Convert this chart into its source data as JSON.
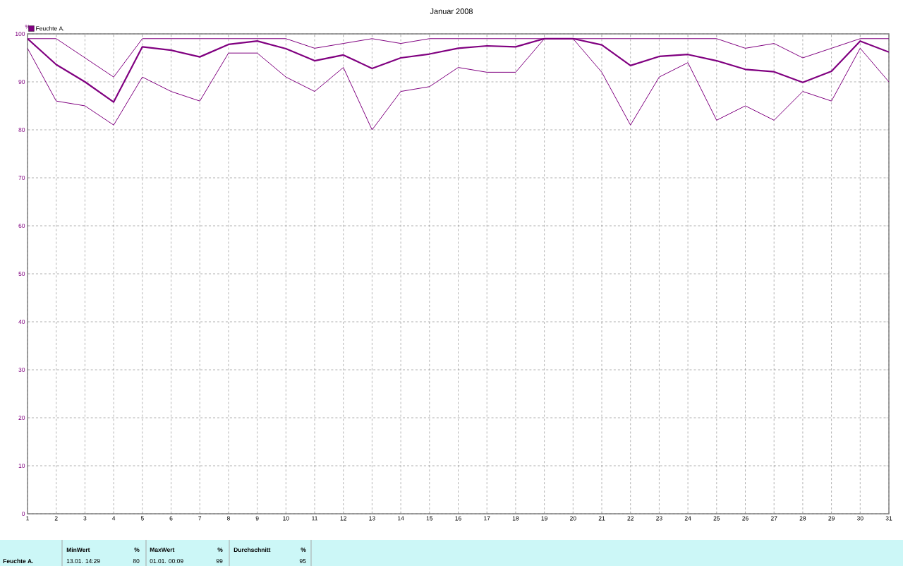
{
  "chart_data": {
    "type": "line",
    "title": "Januar 2008",
    "ylabel": "%",
    "x": [
      1,
      2,
      3,
      4,
      5,
      6,
      7,
      8,
      9,
      10,
      11,
      12,
      13,
      14,
      15,
      16,
      17,
      18,
      19,
      20,
      21,
      22,
      23,
      24,
      25,
      26,
      27,
      28,
      29,
      30,
      31
    ],
    "series": [
      {
        "color": "#800080",
        "values": [
          99,
          99,
          95,
          91,
          99,
          99,
          99,
          99,
          99,
          99,
          97,
          98,
          99,
          98,
          99,
          99,
          99,
          99,
          99,
          99,
          99,
          99,
          99,
          99,
          99,
          97,
          98,
          95,
          97,
          99,
          99
        ]
      },
      {
        "name": "Feuchte A.",
        "color": "#800080",
        "values": [
          99,
          93.6,
          90,
          85.8,
          97.3,
          96.6,
          95.2,
          97.8,
          98.5,
          96.9,
          94.4,
          95.6,
          92.8,
          95,
          95.8,
          97,
          97.5,
          97.3,
          99,
          99,
          97.7,
          93.4,
          95.3,
          95.7,
          94.4,
          92.6,
          92.1,
          89.9,
          92.2,
          98.5,
          96.2
        ]
      },
      {
        "color": "#800080",
        "values": [
          97,
          86,
          85,
          81,
          91,
          88,
          86,
          96,
          96,
          91,
          88,
          93,
          80,
          88,
          89,
          93,
          92,
          92,
          99,
          99,
          92,
          81,
          91,
          94,
          82,
          85,
          82,
          88,
          86,
          97,
          90
        ]
      }
    ],
    "xlim": [
      1,
      31
    ],
    "xticks": [
      1,
      2,
      3,
      4,
      5,
      6,
      7,
      8,
      9,
      10,
      11,
      12,
      13,
      14,
      15,
      16,
      17,
      18,
      19,
      20,
      21,
      22,
      23,
      24,
      25,
      26,
      27,
      28,
      29,
      30,
      31
    ],
    "ylim": [
      0,
      100
    ],
    "yticks": [
      0,
      10,
      20,
      30,
      40,
      50,
      60,
      70,
      80,
      90,
      100
    ],
    "grid": true,
    "legend": "top left",
    "marker": "none",
    "line_style": "solid",
    "annotations": [
      "Feuchte A.",
      "MinWert",
      "%",
      "13.01.  14:29",
      "80",
      "MaxWert",
      "%",
      "01.01.  00:09",
      "99",
      "Durchschnitt",
      "%",
      "95"
    ]
  }
}
